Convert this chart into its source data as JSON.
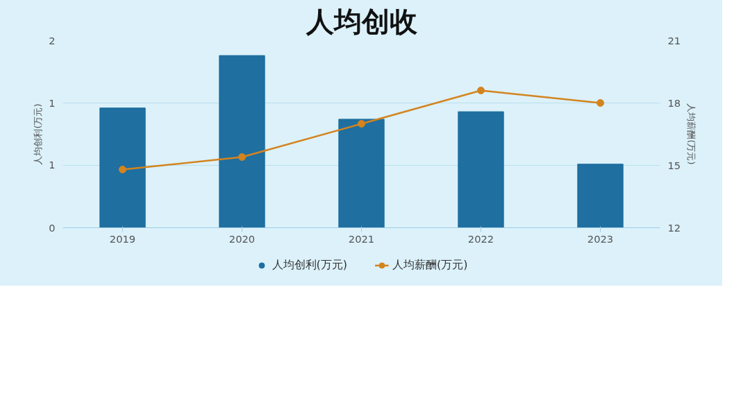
{
  "chart_data": {
    "type": "bar",
    "title": "人均创收",
    "categories": [
      "2019",
      "2020",
      "2021",
      "2022",
      "2023"
    ],
    "ylabel": "人均创利(万元)",
    "y2label": "人均薪酬(万元)",
    "ylim": [
      0,
      2
    ],
    "yticks": [
      0,
      {
        "value": 0.667,
        "label": "1"
      },
      {
        "value": 1.333,
        "label": "1"
      },
      2
    ],
    "y2lim": [
      12,
      21
    ],
    "y2ticks": [
      12,
      15,
      18,
      21
    ],
    "series": [
      {
        "name": "人均创利(万元)",
        "color": "#1f6fa0",
        "values": [
          1.28,
          1.84,
          1.16,
          1.24,
          0.68
        ]
      },
      {
        "name": "人均薪酬(万元)",
        "type": "line",
        "axis": "y2",
        "color": "#d4841e",
        "marker": "circle",
        "values": [
          14.8,
          15.4,
          17.0,
          18.6,
          18.0
        ]
      }
    ],
    "grid": "y",
    "legend": "bottom"
  }
}
